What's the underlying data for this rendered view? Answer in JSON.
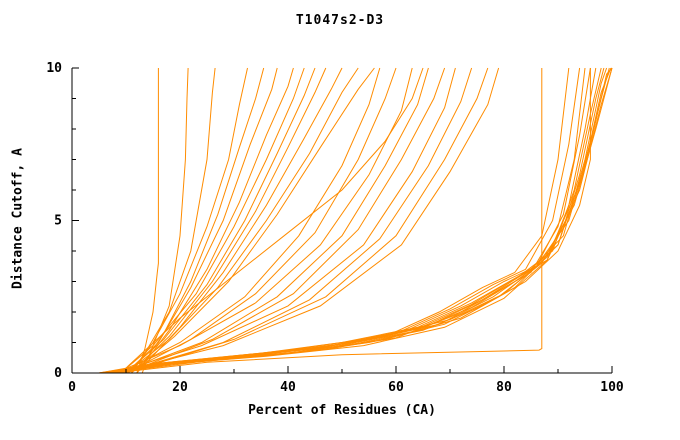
{
  "chart_data": {
    "type": "line",
    "title": "T1047s2-D3",
    "xlabel": "Percent of Residues (CA)",
    "ylabel": "Distance Cutoff, A",
    "xlim": [
      0,
      100
    ],
    "ylim": [
      0,
      10
    ],
    "grid": false,
    "legend": "none",
    "line_color": "#FF8C00",
    "axis_color": "#000000",
    "x_ticks": {
      "major": [
        0,
        20,
        40,
        60,
        80,
        100
      ],
      "minor": [
        10,
        30,
        50,
        70,
        90
      ]
    },
    "y_ticks": {
      "major": [
        0,
        5,
        10
      ],
      "minor": [
        1,
        2,
        3,
        4,
        6,
        7,
        8,
        9
      ]
    },
    "series": [
      [
        [
          12,
          0
        ],
        [
          13.5,
          0.8
        ],
        [
          15,
          2
        ],
        [
          15.8,
          3.3
        ],
        [
          16,
          3.6
        ],
        [
          16,
          10
        ]
      ],
      [
        [
          13,
          0
        ],
        [
          15,
          0.9
        ],
        [
          18,
          2.2
        ],
        [
          20,
          4.5
        ],
        [
          21,
          7
        ],
        [
          21.3,
          9
        ],
        [
          21.5,
          10
        ]
      ],
      [
        [
          11,
          0
        ],
        [
          14,
          0.8
        ],
        [
          18,
          2
        ],
        [
          22,
          4
        ],
        [
          25,
          7
        ],
        [
          26,
          9.2
        ],
        [
          26.5,
          10
        ]
      ],
      [
        [
          11,
          0
        ],
        [
          15,
          1
        ],
        [
          20,
          2.6
        ],
        [
          25,
          4.8
        ],
        [
          29,
          7
        ],
        [
          31,
          8.8
        ],
        [
          32.5,
          10
        ]
      ],
      [
        [
          12,
          0
        ],
        [
          17,
          1.3
        ],
        [
          22,
          3
        ],
        [
          27,
          5.2
        ],
        [
          31,
          7.4
        ],
        [
          34,
          9
        ],
        [
          35.5,
          10
        ]
      ],
      [
        [
          10,
          0
        ],
        [
          16,
          1
        ],
        [
          22,
          2.8
        ],
        [
          28,
          5
        ],
        [
          33,
          7.5
        ],
        [
          37,
          9.3
        ],
        [
          38,
          10
        ]
      ],
      [
        [
          12,
          0
        ],
        [
          18,
          1.4
        ],
        [
          25,
          3.4
        ],
        [
          31,
          5.6
        ],
        [
          36,
          7.8
        ],
        [
          40,
          9.4
        ],
        [
          41,
          10
        ]
      ],
      [
        [
          9,
          0
        ],
        [
          15,
          0.9
        ],
        [
          23,
          2.6
        ],
        [
          30,
          4.8
        ],
        [
          36,
          7
        ],
        [
          41,
          9
        ],
        [
          43,
          10
        ]
      ],
      [
        [
          10,
          0
        ],
        [
          17,
          1.1
        ],
        [
          25,
          2.9
        ],
        [
          32,
          5
        ],
        [
          38,
          7.2
        ],
        [
          43,
          9.1
        ],
        [
          45,
          10
        ]
      ],
      [
        [
          11,
          0
        ],
        [
          18,
          1.2
        ],
        [
          26,
          3
        ],
        [
          34,
          5.3
        ],
        [
          40,
          7.4
        ],
        [
          45,
          9.2
        ],
        [
          47,
          10
        ]
      ],
      [
        [
          12,
          0
        ],
        [
          20,
          1.5
        ],
        [
          28,
          3.3
        ],
        [
          36,
          5.5
        ],
        [
          43,
          7.7
        ],
        [
          48,
          9.3
        ],
        [
          50,
          10
        ]
      ],
      [
        [
          10,
          0
        ],
        [
          18,
          1.1
        ],
        [
          27,
          2.8
        ],
        [
          36,
          5
        ],
        [
          44,
          7.2
        ],
        [
          50,
          9.2
        ],
        [
          53,
          10
        ]
      ],
      [
        [
          11,
          0
        ],
        [
          19,
          1.2
        ],
        [
          29,
          3
        ],
        [
          38,
          5.2
        ],
        [
          46,
          7.4
        ],
        [
          53,
          9.3
        ],
        [
          56,
          10
        ]
      ],
      [
        [
          9,
          0
        ],
        [
          20,
          1.8
        ],
        [
          30,
          3.2
        ],
        [
          40,
          4.6
        ],
        [
          50,
          6
        ],
        [
          58,
          7.6
        ],
        [
          63,
          9
        ],
        [
          65,
          10
        ]
      ],
      [
        [
          9,
          0
        ],
        [
          20,
          1
        ],
        [
          32,
          2.5
        ],
        [
          42,
          4.5
        ],
        [
          50,
          6.8
        ],
        [
          55,
          8.8
        ],
        [
          57,
          10
        ]
      ],
      [
        [
          10,
          0
        ],
        [
          22,
          1.1
        ],
        [
          34,
          2.6
        ],
        [
          45,
          4.6
        ],
        [
          53,
          7
        ],
        [
          58,
          9
        ],
        [
          60,
          10
        ]
      ],
      [
        [
          8,
          0
        ],
        [
          20,
          0.9
        ],
        [
          34,
          2.3
        ],
        [
          46,
          4.2
        ],
        [
          55,
          6.5
        ],
        [
          61,
          8.6
        ],
        [
          63,
          10
        ]
      ],
      [
        [
          9,
          0
        ],
        [
          24,
          1
        ],
        [
          38,
          2.5
        ],
        [
          50,
          4.5
        ],
        [
          58,
          6.8
        ],
        [
          64,
          8.8
        ],
        [
          66,
          10
        ]
      ],
      [
        [
          10,
          0
        ],
        [
          26,
          1.1
        ],
        [
          41,
          2.6
        ],
        [
          53,
          4.7
        ],
        [
          61,
          7
        ],
        [
          67,
          9
        ],
        [
          69,
          10
        ]
      ],
      [
        [
          8,
          0
        ],
        [
          24,
          0.9
        ],
        [
          40,
          2.2
        ],
        [
          54,
          4.2
        ],
        [
          63,
          6.6
        ],
        [
          69,
          8.7
        ],
        [
          71,
          10
        ]
      ],
      [
        [
          9,
          0
        ],
        [
          28,
          1
        ],
        [
          44,
          2.4
        ],
        [
          57,
          4.4
        ],
        [
          66,
          6.8
        ],
        [
          72,
          8.9
        ],
        [
          74,
          10
        ]
      ],
      [
        [
          10,
          0
        ],
        [
          30,
          1.1
        ],
        [
          47,
          2.5
        ],
        [
          60,
          4.5
        ],
        [
          69,
          7
        ],
        [
          75,
          9
        ],
        [
          77,
          10
        ]
      ],
      [
        [
          8,
          0
        ],
        [
          28,
          0.9
        ],
        [
          46,
          2.2
        ],
        [
          61,
          4.2
        ],
        [
          70,
          6.6
        ],
        [
          77,
          8.8
        ],
        [
          79,
          10
        ]
      ],
      [
        [
          6,
          0
        ],
        [
          15,
          0.3
        ],
        [
          30,
          0.55
        ],
        [
          45,
          0.8
        ],
        [
          58,
          1.2
        ],
        [
          68,
          2
        ],
        [
          76,
          2.8
        ],
        [
          82,
          3.3
        ],
        [
          87,
          4.5
        ],
        [
          90,
          7
        ],
        [
          92,
          10
        ]
      ],
      [
        [
          7,
          0
        ],
        [
          16,
          0.32
        ],
        [
          32,
          0.6
        ],
        [
          47,
          0.85
        ],
        [
          60,
          1.3
        ],
        [
          70,
          2.1
        ],
        [
          78,
          2.9
        ],
        [
          84,
          3.4
        ],
        [
          89,
          5
        ],
        [
          92,
          7.5
        ],
        [
          94,
          10
        ]
      ],
      [
        [
          5,
          0
        ],
        [
          14,
          0.28
        ],
        [
          30,
          0.5
        ],
        [
          46,
          0.75
        ],
        [
          60,
          1.15
        ],
        [
          71,
          1.9
        ],
        [
          79,
          2.7
        ],
        [
          85,
          3.3
        ],
        [
          90,
          4.8
        ],
        [
          93,
          7
        ],
        [
          95,
          10
        ]
      ],
      [
        [
          6,
          0
        ],
        [
          16,
          0.3
        ],
        [
          33,
          0.58
        ],
        [
          48,
          0.9
        ],
        [
          62,
          1.4
        ],
        [
          72,
          2.2
        ],
        [
          80,
          3
        ],
        [
          86,
          3.5
        ],
        [
          91,
          5.2
        ],
        [
          94,
          7.8
        ],
        [
          96,
          10
        ]
      ],
      [
        [
          7,
          0
        ],
        [
          18,
          0.35
        ],
        [
          35,
          0.65
        ],
        [
          50,
          1
        ],
        [
          64,
          1.5
        ],
        [
          74,
          2.3
        ],
        [
          82,
          3.1
        ],
        [
          88,
          3.7
        ],
        [
          92,
          5.5
        ],
        [
          95,
          8
        ],
        [
          97,
          10
        ]
      ],
      [
        [
          6,
          0
        ],
        [
          17,
          0.3
        ],
        [
          34,
          0.6
        ],
        [
          50,
          0.95
        ],
        [
          64,
          1.45
        ],
        [
          74,
          2.25
        ],
        [
          83,
          3.2
        ],
        [
          89,
          4
        ],
        [
          93,
          6
        ],
        [
          96,
          8.5
        ],
        [
          98,
          10
        ]
      ],
      [
        [
          5,
          0
        ],
        [
          15,
          0.28
        ],
        [
          32,
          0.55
        ],
        [
          48,
          0.85
        ],
        [
          63,
          1.35
        ],
        [
          74,
          2.15
        ],
        [
          83,
          3.1
        ],
        [
          90,
          4.2
        ],
        [
          94,
          6.5
        ],
        [
          97,
          9
        ],
        [
          98.5,
          10
        ]
      ],
      [
        [
          6,
          0
        ],
        [
          18,
          0.32
        ],
        [
          36,
          0.62
        ],
        [
          52,
          1
        ],
        [
          66,
          1.55
        ],
        [
          76,
          2.4
        ],
        [
          85,
          3.4
        ],
        [
          91,
          4.5
        ],
        [
          95,
          7
        ],
        [
          98,
          9.5
        ],
        [
          99,
          10
        ]
      ],
      [
        [
          7,
          0
        ],
        [
          20,
          0.35
        ],
        [
          38,
          0.68
        ],
        [
          54,
          1.05
        ],
        [
          68,
          1.6
        ],
        [
          78,
          2.5
        ],
        [
          86,
          3.5
        ],
        [
          92,
          5
        ],
        [
          96,
          7.5
        ],
        [
          99,
          9.8
        ],
        [
          100,
          10
        ]
      ],
      [
        [
          6,
          0
        ],
        [
          19,
          0.3
        ],
        [
          38,
          0.6
        ],
        [
          55,
          1
        ],
        [
          69,
          1.6
        ],
        [
          79,
          2.5
        ],
        [
          87,
          3.6
        ],
        [
          93,
          5.5
        ],
        [
          97,
          8
        ],
        [
          100,
          10
        ]
      ],
      [
        [
          5,
          0
        ],
        [
          17,
          0.28
        ],
        [
          36,
          0.55
        ],
        [
          54,
          0.9
        ],
        [
          69,
          1.5
        ],
        [
          80,
          2.45
        ],
        [
          88,
          3.7
        ],
        [
          94,
          6
        ],
        [
          98,
          8.8
        ],
        [
          100,
          10
        ]
      ],
      [
        [
          8,
          0
        ],
        [
          22,
          0.4
        ],
        [
          40,
          0.75
        ],
        [
          56,
          1.15
        ],
        [
          70,
          1.75
        ],
        [
          80,
          2.6
        ],
        [
          88,
          3.8
        ],
        [
          94,
          6.2
        ],
        [
          98,
          9
        ],
        [
          99.5,
          10
        ]
      ],
      [
        [
          6,
          0
        ],
        [
          20,
          0.33
        ],
        [
          40,
          0.65
        ],
        [
          58,
          1.1
        ],
        [
          72,
          1.8
        ],
        [
          82,
          2.8
        ],
        [
          90,
          4.2
        ],
        [
          95,
          6.8
        ],
        [
          98,
          9.2
        ],
        [
          99.8,
          10
        ]
      ],
      [
        [
          8,
          0
        ],
        [
          25,
          0.35
        ],
        [
          50,
          0.6
        ],
        [
          75,
          0.7
        ],
        [
          86.5,
          0.75
        ],
        [
          87,
          0.8
        ],
        [
          87,
          10
        ]
      ],
      [
        [
          7,
          0
        ],
        [
          25,
          0.4
        ],
        [
          48,
          0.8
        ],
        [
          65,
          1.4
        ],
        [
          76,
          2.2
        ],
        [
          84,
          3
        ],
        [
          90,
          4
        ],
        [
          94,
          5.5
        ],
        [
          96,
          7
        ],
        [
          96,
          10
        ]
      ]
    ]
  }
}
